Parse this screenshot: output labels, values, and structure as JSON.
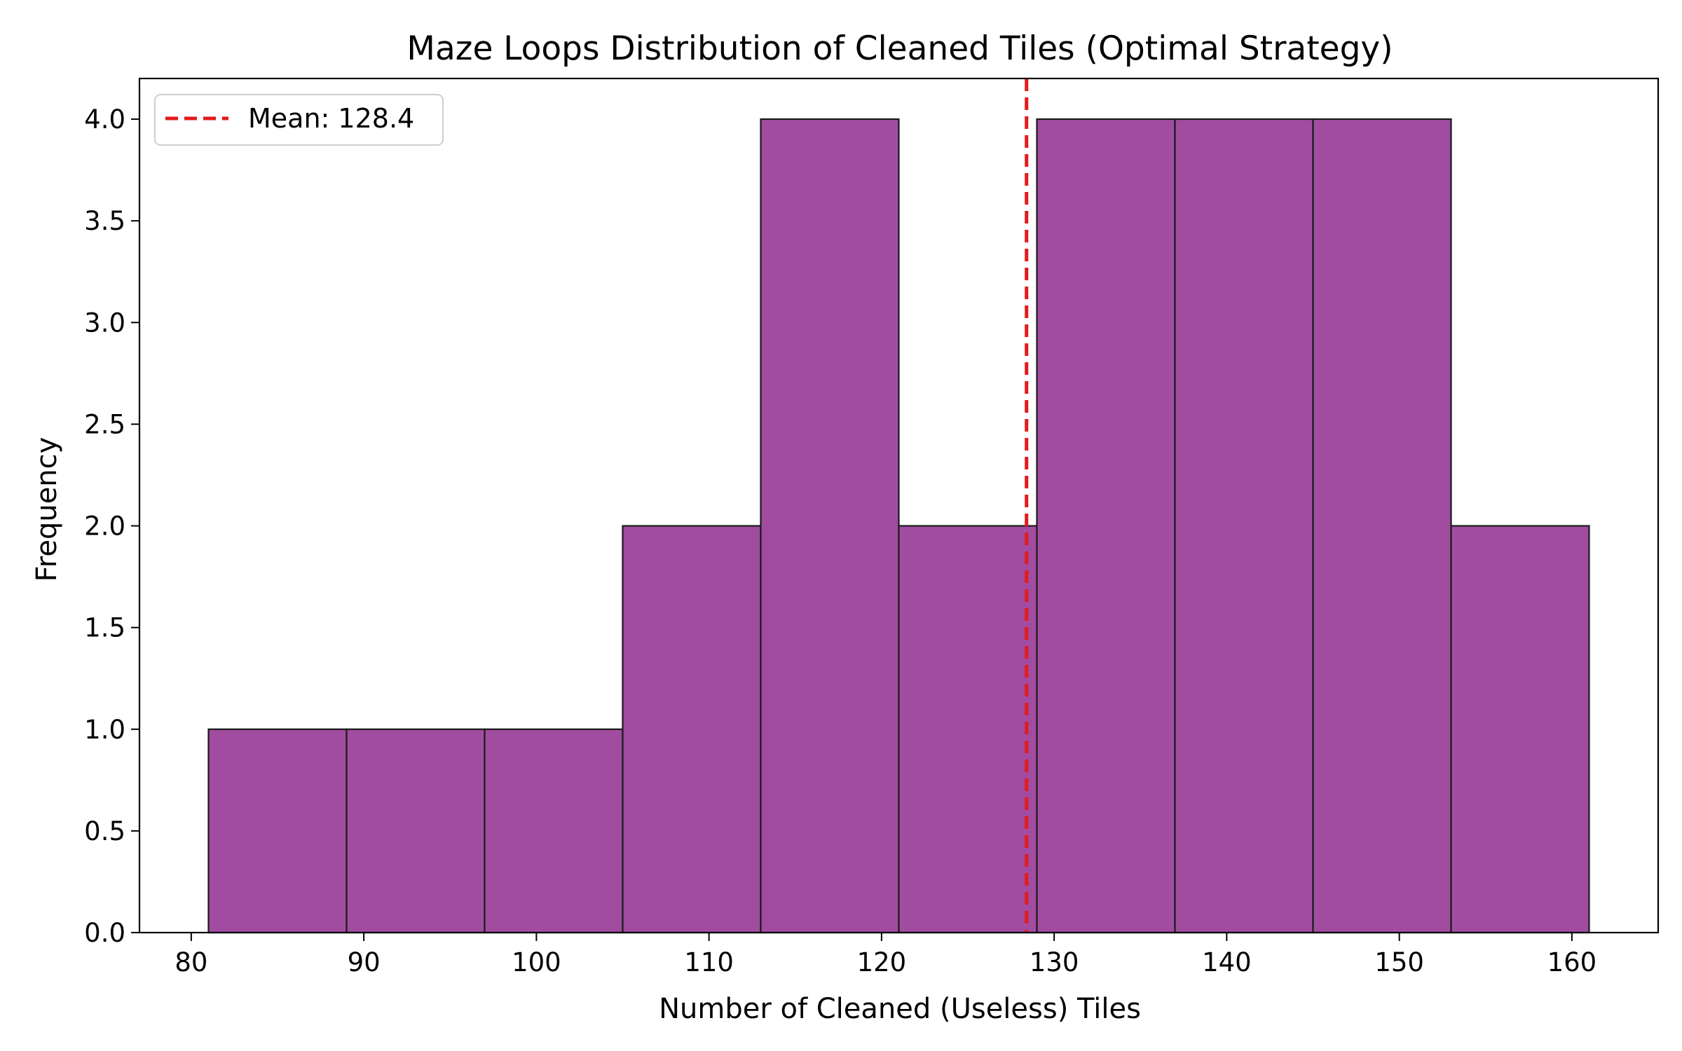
{
  "chart_data": {
    "type": "bar",
    "title": "Maze Loops Distribution of Cleaned Tiles (Optimal Strategy)",
    "xlabel": "Number of Cleaned (Useless) Tiles",
    "ylabel": "Frequency",
    "xlim": [
      77,
      165
    ],
    "ylim": [
      0,
      4.2
    ],
    "xticks": [
      80,
      90,
      100,
      110,
      120,
      130,
      140,
      150,
      160
    ],
    "yticks": [
      0.0,
      0.5,
      1.0,
      1.5,
      2.0,
      2.5,
      3.0,
      3.5,
      4.0
    ],
    "bins": [
      81,
      89,
      97,
      105,
      113,
      121,
      129,
      137,
      145,
      153,
      161
    ],
    "counts": [
      1,
      1,
      1,
      2,
      4,
      2,
      4,
      4,
      4,
      2
    ],
    "bar_color": "#a24ca1",
    "edge_color": "#1a1a1a",
    "mean": {
      "value": 128.4,
      "label": "Mean: 128.4",
      "color": "#e31a1c",
      "style": "dashed"
    },
    "legend_position": "upper-left",
    "grid": false
  }
}
